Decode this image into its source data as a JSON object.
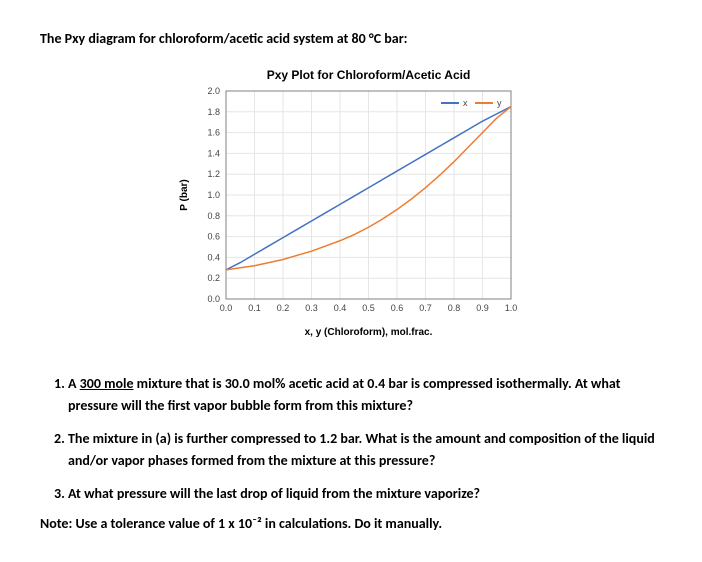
{
  "heading": "The Pxy diagram for chloroform/acetic acid system at 80 °C bar:",
  "chart": {
    "title": "Pxy Plot for Chloroform/Acetic Acid",
    "xlabel": "x, y (Chloroform), mol.frac.",
    "ylabel": "P (bar)",
    "xlim": [
      0.0,
      1.0
    ],
    "ylim": [
      0.0,
      2.0
    ],
    "xticks": [
      0.0,
      0.1,
      0.2,
      0.3,
      0.4,
      0.5,
      0.6,
      0.7,
      0.8,
      0.9,
      1.0
    ],
    "yticks": [
      0.0,
      0.2,
      0.4,
      0.6,
      0.8,
      1.0,
      1.2,
      1.4,
      1.6,
      1.8,
      2.0
    ],
    "grid_color": "#e6e6e6",
    "axis_color": "#808080",
    "background": "#ffffff",
    "tick_fontsize": 9,
    "label_fontsize": 10,
    "title_fontsize": 12,
    "series": [
      {
        "name": "x",
        "color": "#4472c4",
        "width": 1.5,
        "points": [
          [
            0.0,
            0.28
          ],
          [
            0.05,
            0.35
          ],
          [
            0.1,
            0.43
          ],
          [
            0.15,
            0.51
          ],
          [
            0.2,
            0.59
          ],
          [
            0.25,
            0.67
          ],
          [
            0.3,
            0.75
          ],
          [
            0.35,
            0.83
          ],
          [
            0.4,
            0.91
          ],
          [
            0.45,
            0.99
          ],
          [
            0.5,
            1.07
          ],
          [
            0.55,
            1.15
          ],
          [
            0.6,
            1.23
          ],
          [
            0.65,
            1.31
          ],
          [
            0.7,
            1.39
          ],
          [
            0.75,
            1.47
          ],
          [
            0.8,
            1.55
          ],
          [
            0.85,
            1.63
          ],
          [
            0.9,
            1.71
          ],
          [
            0.95,
            1.78
          ],
          [
            1.0,
            1.85
          ]
        ]
      },
      {
        "name": "y",
        "color": "#ed7d31",
        "width": 1.5,
        "points": [
          [
            0.0,
            0.28
          ],
          [
            0.05,
            0.3
          ],
          [
            0.1,
            0.32
          ],
          [
            0.15,
            0.35
          ],
          [
            0.2,
            0.38
          ],
          [
            0.25,
            0.42
          ],
          [
            0.3,
            0.46
          ],
          [
            0.35,
            0.51
          ],
          [
            0.4,
            0.56
          ],
          [
            0.45,
            0.62
          ],
          [
            0.5,
            0.69
          ],
          [
            0.55,
            0.77
          ],
          [
            0.6,
            0.86
          ],
          [
            0.65,
            0.96
          ],
          [
            0.7,
            1.07
          ],
          [
            0.75,
            1.19
          ],
          [
            0.8,
            1.32
          ],
          [
            0.85,
            1.46
          ],
          [
            0.9,
            1.6
          ],
          [
            0.95,
            1.74
          ],
          [
            1.0,
            1.85
          ]
        ]
      }
    ],
    "legend": {
      "x": "x",
      "y": "y"
    }
  },
  "questions": {
    "q1a": "A ",
    "q1u": "300 mole",
    "q1b": " mixture that is 30.0 mol% acetic acid at 0.4 bar is compressed isothermally. At what pressure will the first vapor bubble form from this mixture?",
    "q2": "The mixture in (a) is further compressed to 1.2 bar. What is the amount and composition of the liquid and/or vapor phases formed from the mixture at this pressure?",
    "q3": "At what pressure will the last drop of liquid from the mixture vaporize?"
  },
  "note": "Note: Use a tolerance value of 1 x 10⁻² in calculations. Do it manually."
}
